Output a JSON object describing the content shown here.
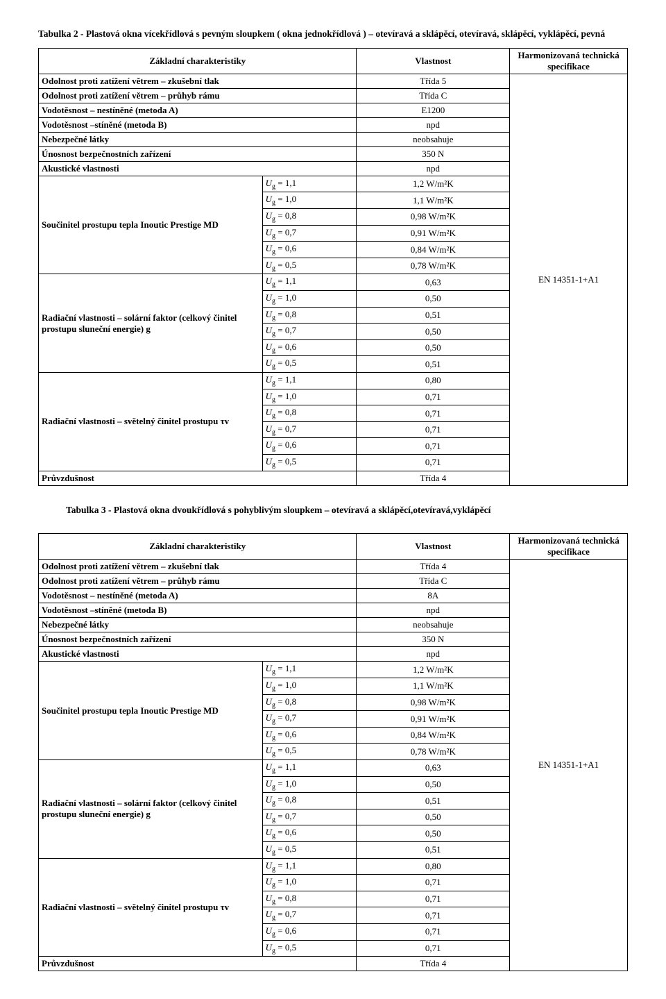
{
  "table2": {
    "title": "Tabulka 2 - Plastová okna vícekřídlová s pevným sloupkem ( okna jednokřídlová ) – otevíravá a sklápěcí, otevíravá, sklápěcí, vyklápěcí, pevná",
    "headers": {
      "char": "Základní charakteristiky",
      "prop": "Vlastnost",
      "harm": "Harmonizovaná technická specifikace"
    },
    "simple_rows": [
      {
        "label": "Odolnost proti zatížení větrem – zkušební tlak",
        "value": "Třída 5"
      },
      {
        "label": "Odolnost proti zatížení větrem – průhyb rámu",
        "value": "Třída C"
      },
      {
        "label": "Vodotěsnost – nestíněné (metoda A)",
        "value": "E1200"
      },
      {
        "label": "Vodotěsnost –stíněné (metoda B)",
        "value": "npd"
      },
      {
        "label": "Nebezpečné látky",
        "value": "neobsahuje"
      },
      {
        "label": "Únosnost bezpečnostních zařízení",
        "value": "350 N"
      },
      {
        "label": "Akustické vlastnosti",
        "value": "npd"
      }
    ],
    "groups": [
      {
        "label": "Součinitel prostupu tepla Inoutic Prestige MD",
        "rows": [
          {
            "ug": "1,1",
            "val": "1,2 W/m²K"
          },
          {
            "ug": "1,0",
            "val": "1,1 W/m²K"
          },
          {
            "ug": "0,8",
            "val": "0,98 W/m²K"
          },
          {
            "ug": "0,7",
            "val": "0,91 W/m²K"
          },
          {
            "ug": "0,6",
            "val": "0,84 W/m²K"
          },
          {
            "ug": "0,5",
            "val": "0,78 W/m²K"
          }
        ]
      },
      {
        "label": "Radiační vlastnosti – solární faktor (celkový činitel prostupu sluneční energie) g",
        "rows": [
          {
            "ug": "1,1",
            "val": "0,63"
          },
          {
            "ug": "1,0",
            "val": "0,50"
          },
          {
            "ug": "0,8",
            "val": "0,51"
          },
          {
            "ug": "0,7",
            "val": "0,50"
          },
          {
            "ug": "0,6",
            "val": "0,50"
          },
          {
            "ug": "0,5",
            "val": "0,51"
          }
        ]
      },
      {
        "label": "Radiační vlastnosti – světelný činitel prostupu τv",
        "rows": [
          {
            "ug": "1,1",
            "val": "0,80"
          },
          {
            "ug": "1,0",
            "val": "0,71"
          },
          {
            "ug": "0,8",
            "val": "0,71"
          },
          {
            "ug": "0,7",
            "val": "0,71"
          },
          {
            "ug": "0,6",
            "val": "0,71"
          },
          {
            "ug": "0,5",
            "val": "0,71"
          }
        ]
      }
    ],
    "final_row": {
      "label": "Průvzdušnost",
      "value": "Třída 4"
    },
    "harm_value": "EN 14351-1+A1"
  },
  "table3": {
    "title": "Tabulka 3 - Plastová okna dvoukřídlová s pohyblivým sloupkem – otevíravá a sklápěcí,otevíravá,vyklápěcí",
    "headers": {
      "char": "Základní charakteristiky",
      "prop": "Vlastnost",
      "harm": "Harmonizovaná technická specifikace"
    },
    "simple_rows": [
      {
        "label": "Odolnost proti zatížení větrem – zkušební tlak",
        "value": "Třída 4"
      },
      {
        "label": "Odolnost proti zatížení větrem – průhyb rámu",
        "value": "Třída C"
      },
      {
        "label": "Vodotěsnost – nestíněné (metoda A)",
        "value": "8A"
      },
      {
        "label": "Vodotěsnost –stíněné (metoda B)",
        "value": "npd"
      },
      {
        "label": "Nebezpečné látky",
        "value": "neobsahuje"
      },
      {
        "label": "Únosnost bezpečnostních zařízení",
        "value": "350 N"
      },
      {
        "label": "Akustické vlastnosti",
        "value": "npd"
      }
    ],
    "groups": [
      {
        "label": "Součinitel prostupu tepla Inoutic Prestige MD",
        "rows": [
          {
            "ug": "1,1",
            "val": "1,2 W/m²K"
          },
          {
            "ug": "1,0",
            "val": "1,1 W/m²K"
          },
          {
            "ug": "0,8",
            "val": "0,98 W/m²K"
          },
          {
            "ug": "0,7",
            "val": "0,91 W/m²K"
          },
          {
            "ug": "0,6",
            "val": "0,84 W/m²K"
          },
          {
            "ug": "0,5",
            "val": "0,78 W/m²K"
          }
        ]
      },
      {
        "label": "Radiační vlastnosti – solární faktor (celkový činitel prostupu sluneční energie) g",
        "rows": [
          {
            "ug": "1,1",
            "val": "0,63"
          },
          {
            "ug": "1,0",
            "val": "0,50"
          },
          {
            "ug": "0,8",
            "val": "0,51"
          },
          {
            "ug": "0,7",
            "val": "0,50"
          },
          {
            "ug": "0,6",
            "val": "0,50"
          },
          {
            "ug": "0,5",
            "val": "0,51"
          }
        ]
      },
      {
        "label": "Radiační vlastnosti – světelný činitel prostupu τv",
        "rows": [
          {
            "ug": "1,1",
            "val": "0,80"
          },
          {
            "ug": "1,0",
            "val": "0,71"
          },
          {
            "ug": "0,8",
            "val": "0,71"
          },
          {
            "ug": "0,7",
            "val": "0,71"
          },
          {
            "ug": "0,6",
            "val": "0,71"
          },
          {
            "ug": "0,5",
            "val": "0,71"
          }
        ]
      }
    ],
    "final_row": {
      "label": "Průvzdušnost",
      "value": "Třída 4"
    },
    "harm_value": "EN 14351-1+A1"
  },
  "ug_prefix": "U",
  "ug_sub": "g",
  "ug_eq": " = "
}
